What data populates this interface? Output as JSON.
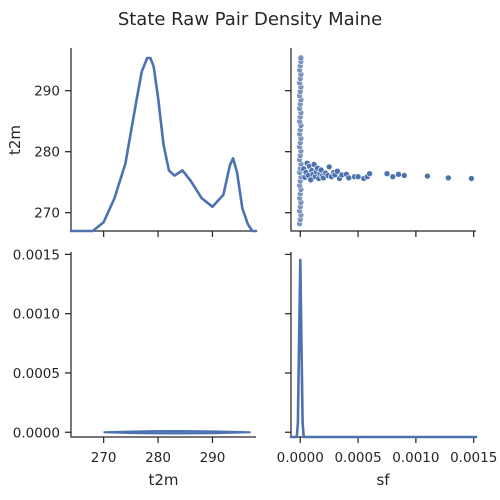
{
  "chart_data": {
    "type": "pairplot",
    "title": "State Raw Pair Density Maine",
    "variables": [
      "t2m",
      "sf"
    ],
    "series_color": "#4c72b0",
    "panels": [
      {
        "id": "t2m-t2m",
        "type": "kde",
        "xlim": [
          264,
          298
        ],
        "kde_x": [
          264,
          268,
          270,
          272,
          274,
          276,
          277,
          278,
          278.6,
          279.2,
          280,
          281,
          282,
          283,
          284.5,
          286,
          288,
          290,
          292,
          293.2,
          293.8,
          294.5,
          295.5,
          296.5,
          297.3,
          298
        ],
        "kde_density_rel": [
          0.0,
          0.0,
          0.05,
          0.19,
          0.39,
          0.75,
          0.92,
          1.0,
          1.0,
          0.95,
          0.77,
          0.5,
          0.35,
          0.32,
          0.35,
          0.29,
          0.19,
          0.14,
          0.21,
          0.38,
          0.42,
          0.34,
          0.13,
          0.04,
          0.0,
          0.0
        ]
      },
      {
        "id": "t2m-sf",
        "type": "scatter",
        "xlim": [
          -8e-05,
          0.00152
        ],
        "ylim": [
          267,
          297
        ],
        "xticks": [
          "0.0000",
          "0.0005",
          "0.0010",
          "0.0015"
        ],
        "xtick_values": [
          0,
          0.0005,
          0.001,
          0.0015
        ],
        "yticks": [
          "270",
          "280",
          "290"
        ],
        "ytick_values": [
          270,
          280,
          290
        ],
        "ylabel": "t2m",
        "zero_column_y": [
          268.2,
          268.9,
          269.6,
          270.3,
          271.0,
          271.7,
          272.4,
          273.1,
          273.8,
          274.5,
          275.2,
          275.9,
          276.6,
          277.3,
          278.0,
          278.7,
          279.4,
          280.1,
          280.8,
          281.5,
          282.2,
          282.9,
          283.6,
          284.3,
          285.0,
          285.7,
          286.4,
          287.1,
          287.8,
          288.5,
          289.2,
          289.9,
          290.6,
          291.3,
          292.0,
          292.7,
          293.4,
          294.1,
          294.8,
          295.4
        ],
        "points": [
          [
            3e-05,
            277.2
          ],
          [
            4e-05,
            275.8
          ],
          [
            5e-05,
            276.6
          ],
          [
            6e-05,
            278.1
          ],
          [
            7e-05,
            276.1
          ],
          [
            8e-05,
            277.6
          ],
          [
            9e-05,
            275.4
          ],
          [
            0.0001,
            276.9
          ],
          [
            0.00011,
            276.3
          ],
          [
            0.00012,
            277.9
          ],
          [
            0.00013,
            275.9
          ],
          [
            0.00014,
            276.7
          ],
          [
            0.00015,
            277.3
          ],
          [
            0.00016,
            275.6
          ],
          [
            0.00017,
            276.4
          ],
          [
            0.00018,
            277.0
          ],
          [
            0.00019,
            276.0
          ],
          [
            0.0002,
            275.7
          ],
          [
            0.00022,
            276.5
          ],
          [
            0.00024,
            276.1
          ],
          [
            0.00025,
            277.5
          ],
          [
            0.00027,
            275.9
          ],
          [
            0.00029,
            276.6
          ],
          [
            0.0003,
            276.2
          ],
          [
            0.00032,
            276.8
          ],
          [
            0.00034,
            275.6
          ],
          [
            0.00036,
            276.2
          ],
          [
            0.0004,
            276.3
          ],
          [
            0.00042,
            275.7
          ],
          [
            0.00047,
            275.9
          ],
          [
            0.0005,
            275.9
          ],
          [
            0.00055,
            275.6
          ],
          [
            0.00058,
            275.9
          ],
          [
            0.0006,
            276.4
          ],
          [
            0.00075,
            276.4
          ],
          [
            0.0008,
            275.9
          ],
          [
            0.00085,
            276.3
          ],
          [
            0.0009,
            276.1
          ],
          [
            0.0011,
            276.0
          ],
          [
            0.00128,
            275.7
          ],
          [
            0.00148,
            275.6
          ]
        ]
      },
      {
        "id": "sf-t2m",
        "type": "kde2d",
        "xlim": [
          264,
          298
        ],
        "ylim": [
          -4e-05,
          0.00152
        ],
        "xticks": [
          "270",
          "280",
          "290"
        ],
        "xtick_values": [
          270,
          280,
          290
        ],
        "xlabel": "t2m",
        "yticks": [
          "0.0000",
          "0.0005",
          "0.0010",
          "0.0015"
        ],
        "ytick_values": [
          0,
          0.0005,
          0.001,
          0.0015
        ],
        "contour_x_range": [
          270,
          297
        ]
      },
      {
        "id": "sf-sf",
        "type": "kde",
        "xlim": [
          -8e-05,
          0.00152
        ],
        "xticks": [
          "0.0000",
          "0.0005",
          "0.0010",
          "0.0015"
        ],
        "xtick_values": [
          0,
          0.0005,
          0.001,
          0.0015
        ],
        "xlabel": "sf",
        "kde_x": [
          -8e-05,
          -3e-05,
          -2e-05,
          -1e-05,
          0.0,
          1e-05,
          2e-05,
          3e-05,
          6e-05,
          0.00152
        ],
        "kde_density_rel": [
          0.0,
          0.0,
          0.08,
          0.55,
          1.0,
          0.55,
          0.08,
          0.0,
          0.0,
          0.0
        ]
      }
    ]
  }
}
